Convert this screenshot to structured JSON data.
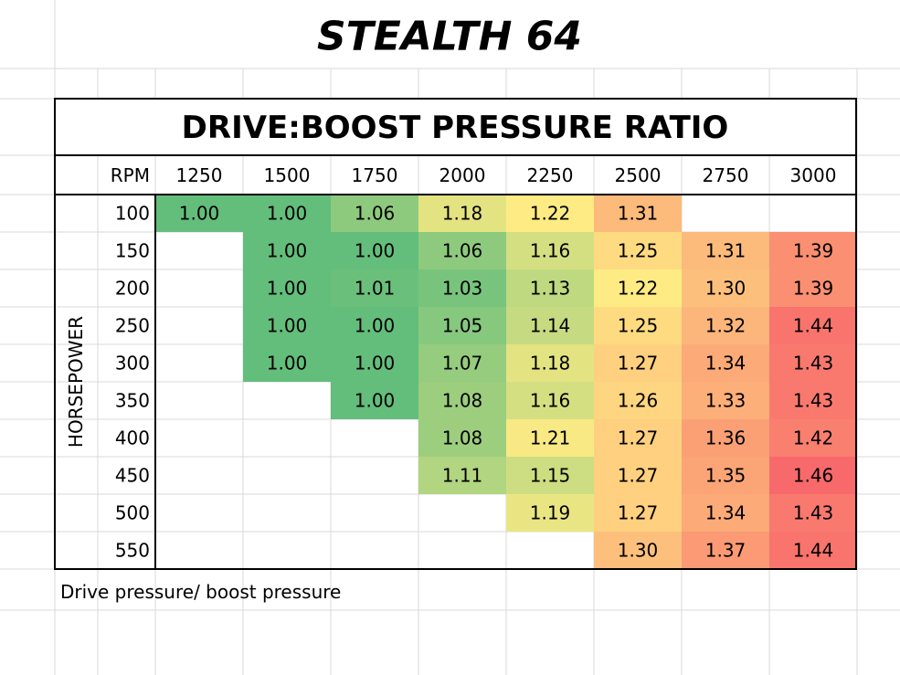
{
  "title": "STEALTH 64",
  "table": {
    "title": "DRIVE:BOOST PRESSURE RATIO",
    "corner": "RPM",
    "columns": [
      "1250",
      "1500",
      "1750",
      "2000",
      "2250",
      "2500",
      "2750",
      "3000"
    ],
    "row_header": "HORSEPOWER",
    "rows": [
      {
        "label": "100",
        "cells": [
          "1.00",
          "1.00",
          "1.06",
          "1.18",
          "1.22",
          "1.31",
          null,
          null
        ]
      },
      {
        "label": "150",
        "cells": [
          null,
          "1.00",
          "1.00",
          "1.06",
          "1.16",
          "1.25",
          "1.31",
          "1.39"
        ]
      },
      {
        "label": "200",
        "cells": [
          null,
          "1.00",
          "1.01",
          "1.03",
          "1.13",
          "1.22",
          "1.30",
          "1.39"
        ]
      },
      {
        "label": "250",
        "cells": [
          null,
          "1.00",
          "1.00",
          "1.05",
          "1.14",
          "1.25",
          "1.32",
          "1.44"
        ]
      },
      {
        "label": "300",
        "cells": [
          null,
          "1.00",
          "1.00",
          "1.07",
          "1.18",
          "1.27",
          "1.34",
          "1.43"
        ]
      },
      {
        "label": "350",
        "cells": [
          null,
          null,
          "1.00",
          "1.08",
          "1.16",
          "1.26",
          "1.33",
          "1.43"
        ]
      },
      {
        "label": "400",
        "cells": [
          null,
          null,
          null,
          "1.08",
          "1.21",
          "1.27",
          "1.36",
          "1.42"
        ]
      },
      {
        "label": "450",
        "cells": [
          null,
          null,
          null,
          "1.11",
          "1.15",
          "1.27",
          "1.35",
          "1.46"
        ]
      },
      {
        "label": "500",
        "cells": [
          null,
          null,
          null,
          null,
          "1.19",
          "1.27",
          "1.34",
          "1.43"
        ]
      },
      {
        "label": "550",
        "cells": [
          null,
          null,
          null,
          null,
          null,
          "1.30",
          "1.37",
          "1.44"
        ]
      }
    ]
  },
  "footnote": "Drive pressure/ boost pressure"
}
